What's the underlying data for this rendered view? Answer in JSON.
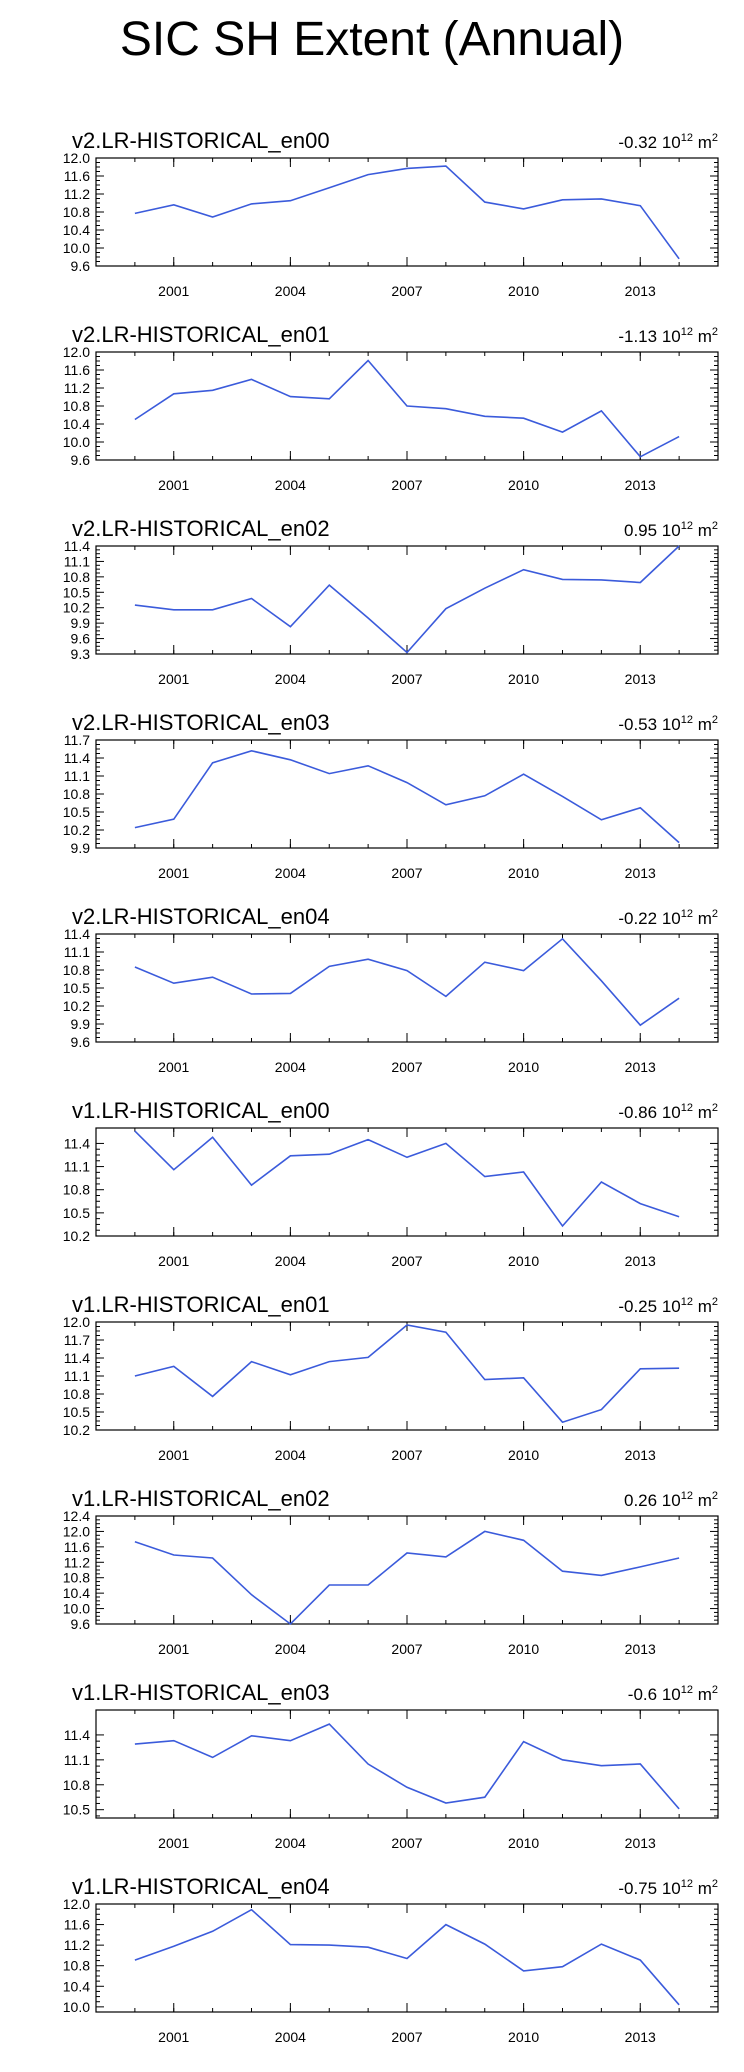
{
  "title": "SIC SH Extent (Annual)",
  "colors": {
    "line": "#3b5bdb",
    "axis": "#000000",
    "background": "#ffffff"
  },
  "chart_data": [
    {
      "type": "line",
      "title": "v2.LR-HISTORICAL_en00",
      "trend": "-0.32",
      "trend_units": "10",
      "units_exp": "12",
      "units_suffix": "m",
      "units_sup": "2",
      "x": [
        2000,
        2001,
        2002,
        2003,
        2004,
        2005,
        2006,
        2007,
        2008,
        2009,
        2010,
        2011,
        2012,
        2013,
        2014
      ],
      "values": [
        10.77,
        10.96,
        10.69,
        10.98,
        11.05,
        11.34,
        11.63,
        11.77,
        11.82,
        11.02,
        10.87,
        11.07,
        11.09,
        10.94,
        9.76
      ],
      "ylim": [
        9.6,
        12.0
      ],
      "yticks": [
        "12.0",
        "11.6",
        "11.2",
        "10.8",
        "10.4",
        "10.0",
        "9.6"
      ],
      "ytick_values": [
        12.0,
        11.6,
        11.2,
        10.8,
        10.4,
        10.0,
        9.6
      ],
      "xticks": [
        "2001",
        "2004",
        "2007",
        "2010",
        "2013"
      ],
      "xtick_values": [
        2001,
        2004,
        2007,
        2010,
        2013
      ]
    },
    {
      "type": "line",
      "title": "v2.LR-HISTORICAL_en01",
      "trend": "-1.13",
      "trend_units": "10",
      "units_exp": "12",
      "units_suffix": "m",
      "units_sup": "2",
      "x": [
        2000,
        2001,
        2002,
        2003,
        2004,
        2005,
        2006,
        2007,
        2008,
        2009,
        2010,
        2011,
        2012,
        2013,
        2014
      ],
      "values": [
        10.5,
        11.07,
        11.15,
        11.39,
        11.01,
        10.96,
        11.81,
        10.8,
        10.74,
        10.57,
        10.53,
        10.22,
        10.69,
        9.67,
        10.12
      ],
      "ylim": [
        9.6,
        12.0
      ],
      "yticks": [
        "12.0",
        "11.6",
        "11.2",
        "10.8",
        "10.4",
        "10.0",
        "9.6"
      ],
      "ytick_values": [
        12.0,
        11.6,
        11.2,
        10.8,
        10.4,
        10.0,
        9.6
      ],
      "xticks": [
        "2001",
        "2004",
        "2007",
        "2010",
        "2013"
      ],
      "xtick_values": [
        2001,
        2004,
        2007,
        2010,
        2013
      ]
    },
    {
      "type": "line",
      "title": "v2.LR-HISTORICAL_en02",
      "trend": "0.95",
      "trend_units": "10",
      "units_exp": "12",
      "units_suffix": "m",
      "units_sup": "2",
      "x": [
        2000,
        2001,
        2002,
        2003,
        2004,
        2005,
        2006,
        2007,
        2008,
        2009,
        2010,
        2011,
        2012,
        2013,
        2014
      ],
      "values": [
        10.25,
        10.16,
        10.16,
        10.38,
        9.83,
        10.64,
        10.0,
        9.33,
        10.18,
        10.58,
        10.94,
        10.75,
        10.74,
        10.69,
        11.4
      ],
      "ylim": [
        9.3,
        11.4
      ],
      "yticks": [
        "11.4",
        "11.1",
        "10.8",
        "10.5",
        "10.2",
        "9.9",
        "9.6",
        "9.3"
      ],
      "ytick_values": [
        11.4,
        11.1,
        10.8,
        10.5,
        10.2,
        9.9,
        9.6,
        9.3
      ],
      "xticks": [
        "2001",
        "2004",
        "2007",
        "2010",
        "2013"
      ],
      "xtick_values": [
        2001,
        2004,
        2007,
        2010,
        2013
      ]
    },
    {
      "type": "line",
      "title": "v2.LR-HISTORICAL_en03",
      "trend": "-0.53",
      "trend_units": "10",
      "units_exp": "12",
      "units_suffix": "m",
      "units_sup": "2",
      "x": [
        2000,
        2001,
        2002,
        2003,
        2004,
        2005,
        2006,
        2007,
        2008,
        2009,
        2010,
        2011,
        2012,
        2013,
        2014
      ],
      "values": [
        10.24,
        10.38,
        11.32,
        11.52,
        11.37,
        11.14,
        11.27,
        10.99,
        10.62,
        10.77,
        11.13,
        10.76,
        10.37,
        10.57,
        9.99
      ],
      "ylim": [
        9.9,
        11.7
      ],
      "yticks": [
        "11.7",
        "11.4",
        "11.1",
        "10.8",
        "10.5",
        "10.2",
        "9.9"
      ],
      "ytick_values": [
        11.7,
        11.4,
        11.1,
        10.8,
        10.5,
        10.2,
        9.9
      ],
      "xticks": [
        "2001",
        "2004",
        "2007",
        "2010",
        "2013"
      ],
      "xtick_values": [
        2001,
        2004,
        2007,
        2010,
        2013
      ]
    },
    {
      "type": "line",
      "title": "v2.LR-HISTORICAL_en04",
      "trend": "-0.22",
      "trend_units": "10",
      "units_exp": "12",
      "units_suffix": "m",
      "units_sup": "2",
      "x": [
        2000,
        2001,
        2002,
        2003,
        2004,
        2005,
        2006,
        2007,
        2008,
        2009,
        2010,
        2011,
        2012,
        2013,
        2014
      ],
      "values": [
        10.85,
        10.58,
        10.68,
        10.4,
        10.41,
        10.86,
        10.98,
        10.79,
        10.36,
        10.93,
        10.79,
        11.32,
        10.62,
        9.88,
        10.33
      ],
      "ylim": [
        9.6,
        11.4
      ],
      "yticks": [
        "11.4",
        "11.1",
        "10.8",
        "10.5",
        "10.2",
        "9.9",
        "9.6"
      ],
      "ytick_values": [
        11.4,
        11.1,
        10.8,
        10.5,
        10.2,
        9.9,
        9.6
      ],
      "xticks": [
        "2001",
        "2004",
        "2007",
        "2010",
        "2013"
      ],
      "xtick_values": [
        2001,
        2004,
        2007,
        2010,
        2013
      ]
    },
    {
      "type": "line",
      "title": "v1.LR-HISTORICAL_en00",
      "trend": "-0.86",
      "trend_units": "10",
      "units_exp": "12",
      "units_suffix": "m",
      "units_sup": "2",
      "x": [
        2000,
        2001,
        2002,
        2003,
        2004,
        2005,
        2006,
        2007,
        2008,
        2009,
        2010,
        2011,
        2012,
        2013,
        2014
      ],
      "values": [
        11.56,
        11.06,
        11.48,
        10.86,
        11.24,
        11.26,
        11.45,
        11.22,
        11.4,
        10.97,
        11.03,
        10.33,
        10.9,
        10.62,
        10.45
      ],
      "ylim": [
        10.2,
        11.6
      ],
      "yticks": [
        "11.4",
        "11.1",
        "10.8",
        "10.5",
        "10.2"
      ],
      "ytick_values": [
        11.4,
        11.1,
        10.8,
        10.5,
        10.2
      ],
      "xticks": [
        "2001",
        "2004",
        "2007",
        "2010",
        "2013"
      ],
      "xtick_values": [
        2001,
        2004,
        2007,
        2010,
        2013
      ]
    },
    {
      "type": "line",
      "title": "v1.LR-HISTORICAL_en01",
      "trend": "-0.25",
      "trend_units": "10",
      "units_exp": "12",
      "units_suffix": "m",
      "units_sup": "2",
      "x": [
        2000,
        2001,
        2002,
        2003,
        2004,
        2005,
        2006,
        2007,
        2008,
        2009,
        2010,
        2011,
        2012,
        2013,
        2014
      ],
      "values": [
        11.1,
        11.26,
        10.76,
        11.34,
        11.12,
        11.34,
        11.41,
        11.95,
        11.83,
        11.04,
        11.07,
        10.33,
        10.54,
        11.22,
        11.23
      ],
      "ylim": [
        10.2,
        12.0
      ],
      "yticks": [
        "12.0",
        "11.7",
        "11.4",
        "11.1",
        "10.8",
        "10.5",
        "10.2"
      ],
      "ytick_values": [
        12.0,
        11.7,
        11.4,
        11.1,
        10.8,
        10.5,
        10.2
      ],
      "xticks": [
        "2001",
        "2004",
        "2007",
        "2010",
        "2013"
      ],
      "xtick_values": [
        2001,
        2004,
        2007,
        2010,
        2013
      ]
    },
    {
      "type": "line",
      "title": "v1.LR-HISTORICAL_en02",
      "trend": "0.26",
      "trend_units": "10",
      "units_exp": "12",
      "units_suffix": "m",
      "units_sup": "2",
      "x": [
        2000,
        2001,
        2002,
        2003,
        2004,
        2005,
        2006,
        2007,
        2008,
        2009,
        2010,
        2011,
        2012,
        2013,
        2014
      ],
      "values": [
        11.73,
        11.39,
        11.31,
        10.36,
        9.6,
        10.61,
        10.61,
        11.44,
        11.34,
        12.0,
        11.77,
        10.97,
        10.86,
        11.08,
        11.31
      ],
      "ylim": [
        9.6,
        12.4
      ],
      "yticks": [
        "12.4",
        "12.0",
        "11.6",
        "11.2",
        "10.8",
        "10.4",
        "10.0",
        "9.6"
      ],
      "ytick_values": [
        12.4,
        12.0,
        11.6,
        11.2,
        10.8,
        10.4,
        10.0,
        9.6
      ],
      "xticks": [
        "2001",
        "2004",
        "2007",
        "2010",
        "2013"
      ],
      "xtick_values": [
        2001,
        2004,
        2007,
        2010,
        2013
      ]
    },
    {
      "type": "line",
      "title": "v1.LR-HISTORICAL_en03",
      "trend": "-0.6",
      "trend_units": "10",
      "units_exp": "12",
      "units_suffix": "m",
      "units_sup": "2",
      "x": [
        2000,
        2001,
        2002,
        2003,
        2004,
        2005,
        2006,
        2007,
        2008,
        2009,
        2010,
        2011,
        2012,
        2013,
        2014
      ],
      "values": [
        11.29,
        11.33,
        11.13,
        11.39,
        11.33,
        11.53,
        11.05,
        10.77,
        10.58,
        10.65,
        11.32,
        11.1,
        11.03,
        11.05,
        10.51
      ],
      "ylim": [
        10.4,
        11.7
      ],
      "yticks": [
        "11.4",
        "11.1",
        "10.8",
        "10.5"
      ],
      "ytick_values": [
        11.4,
        11.1,
        10.8,
        10.5
      ],
      "xticks": [
        "2001",
        "2004",
        "2007",
        "2010",
        "2013"
      ],
      "xtick_values": [
        2001,
        2004,
        2007,
        2010,
        2013
      ]
    },
    {
      "type": "line",
      "title": "v1.LR-HISTORICAL_en04",
      "trend": "-0.75",
      "trend_units": "10",
      "units_exp": "12",
      "units_suffix": "m",
      "units_sup": "2",
      "x": [
        2000,
        2001,
        2002,
        2003,
        2004,
        2005,
        2006,
        2007,
        2008,
        2009,
        2010,
        2011,
        2012,
        2013,
        2014
      ],
      "values": [
        10.91,
        11.18,
        11.47,
        11.89,
        11.21,
        11.2,
        11.16,
        10.94,
        11.6,
        11.22,
        10.7,
        10.78,
        11.22,
        10.91,
        10.04
      ],
      "ylim": [
        9.9,
        12.0
      ],
      "yticks": [
        "12.0",
        "11.6",
        "11.2",
        "10.8",
        "10.4",
        "10.0"
      ],
      "ytick_values": [
        12.0,
        11.6,
        11.2,
        10.8,
        10.4,
        10.0
      ],
      "xticks": [
        "2001",
        "2004",
        "2007",
        "2010",
        "2013"
      ],
      "xtick_values": [
        2001,
        2004,
        2007,
        2010,
        2013
      ]
    }
  ]
}
